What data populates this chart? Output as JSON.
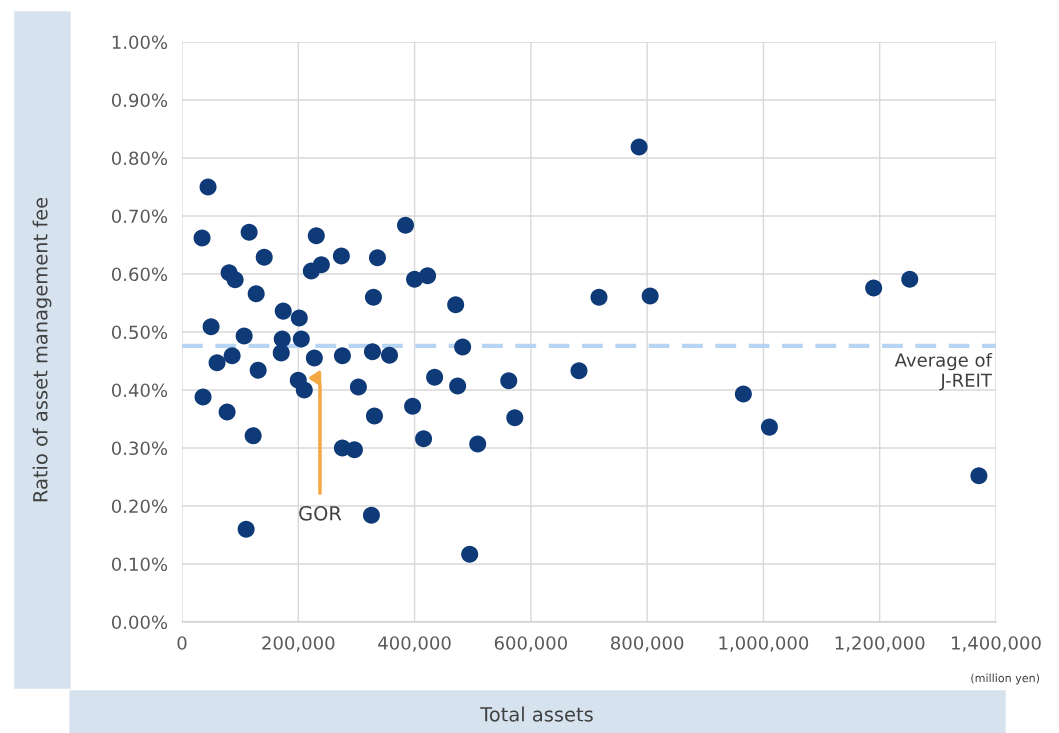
{
  "chart_data": {
    "type": "scatter",
    "xlabel": "Total assets",
    "ylabel": "Ratio of asset management fee",
    "x": [
      44800,
      34500,
      36200,
      50000,
      60300,
      81000,
      91400,
      86200,
      77600,
      115500,
      106900,
      127600,
      141400,
      131000,
      122400,
      110300,
      174100,
      172400,
      170700,
      201700,
      205200,
      200000,
      210300,
      231000,
      222400,
      239700,
      227600,
      274100,
      275900,
      275900,
      296600,
      303400,
      336200,
      329300,
      327600,
      356900,
      331000,
      325800,
      384400,
      400000,
      422400,
      396600,
      434500,
      415500,
      470700,
      482700,
      474100,
      562000,
      508600,
      494800,
      572400,
      682800,
      717200,
      786200,
      805200,
      965500,
      1010300,
      1189600,
      1251700,
      1370600
    ],
    "series": [
      {
        "color": "#0e3a78",
        "values": [
          0.75,
          0.662,
          0.388,
          0.509,
          0.447,
          0.602,
          0.59,
          0.459,
          0.362,
          0.672,
          0.493,
          0.566,
          0.629,
          0.434,
          0.321,
          0.16,
          0.536,
          0.488,
          0.464,
          0.524,
          0.488,
          0.417,
          0.4,
          0.666,
          0.605,
          0.616,
          0.455,
          0.631,
          0.459,
          0.3,
          0.297,
          0.405,
          0.628,
          0.56,
          0.466,
          0.46,
          0.355,
          0.184,
          0.684,
          0.591,
          0.597,
          0.372,
          0.422,
          0.316,
          0.547,
          0.474,
          0.407,
          0.416,
          0.307,
          0.117,
          0.352,
          0.433,
          0.56,
          0.819,
          0.562,
          0.393,
          0.336,
          0.576,
          0.591,
          0.252
        ]
      }
    ],
    "marker": "circle",
    "xlim": [
      0,
      1400000
    ],
    "xticks": [
      0,
      {
        "value": 200000,
        "label": "200,000"
      },
      {
        "value": 400000,
        "label": "400,000"
      },
      {
        "value": 600000,
        "label": "600,000"
      },
      {
        "value": 800000,
        "label": "800,000"
      },
      {
        "value": 1000000,
        "label": "1,000,000"
      },
      {
        "value": 1200000,
        "label": "1,200,000"
      },
      {
        "value": 1400000,
        "label": "1,400,000"
      }
    ],
    "ylim": [
      0,
      1.0
    ],
    "yticks": [
      {
        "value": 0,
        "label": "0.00%"
      },
      {
        "value": 0.1,
        "label": "0.10%"
      },
      {
        "value": 0.2,
        "label": "0.20%"
      },
      {
        "value": 0.3,
        "label": "0.30%"
      },
      {
        "value": 0.4,
        "label": "0.40%"
      },
      {
        "value": 0.5,
        "label": "0.50%"
      },
      {
        "value": 0.6,
        "label": "0.60%"
      },
      {
        "value": 0.7,
        "label": "0.70%"
      },
      {
        "value": 0.8,
        "label": "0.80%"
      },
      {
        "value": 0.9,
        "label": "0.90%"
      },
      {
        "value": 1.0,
        "label": "1.00%"
      }
    ],
    "grid": true,
    "ref_lines": [
      {
        "axis": "y",
        "value": 0.476,
        "label": "Average of\nJ-REIT",
        "color": "#b7d5f3",
        "line_style": "dashed"
      }
    ],
    "annotations": [
      "GOR",
      "(million yen)"
    ]
  }
}
